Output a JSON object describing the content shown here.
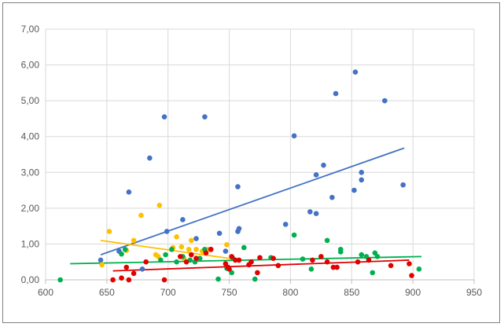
{
  "chart_data": {
    "type": "scatter",
    "title": "",
    "xlabel": "",
    "ylabel": "",
    "xlim": [
      600,
      950
    ],
    "ylim": [
      0,
      7
    ],
    "xticks": [
      "600",
      "650",
      "700",
      "750",
      "800",
      "850",
      "900",
      "950"
    ],
    "yticks": [
      "0,00",
      "1,00",
      "2,00",
      "3,00",
      "4,00",
      "5,00",
      "6,00",
      "7,00"
    ],
    "grid": true,
    "legend": "none",
    "series": [
      {
        "color": "#4472c4",
        "points": [
          [
            645,
            0.55
          ],
          [
            660,
            0.8
          ],
          [
            668,
            2.45
          ],
          [
            679,
            0.3
          ],
          [
            685,
            3.4
          ],
          [
            697,
            4.55
          ],
          [
            699,
            1.35
          ],
          [
            712,
            1.68
          ],
          [
            723,
            1.15
          ],
          [
            730,
            4.55
          ],
          [
            735,
            0.85
          ],
          [
            742,
            1.3
          ],
          [
            747,
            0.8
          ],
          [
            757,
            2.6
          ],
          [
            757,
            1.35
          ],
          [
            758,
            1.43
          ],
          [
            796,
            1.55
          ],
          [
            803,
            4.02
          ],
          [
            816,
            1.9
          ],
          [
            821,
            2.93
          ],
          [
            821,
            1.85
          ],
          [
            827,
            3.2
          ],
          [
            834,
            2.3
          ],
          [
            837,
            5.2
          ],
          [
            852,
            2.5
          ],
          [
            853,
            5.8
          ],
          [
            858,
            2.79
          ],
          [
            858,
            3.0
          ],
          [
            877,
            5.0
          ],
          [
            892,
            2.65
          ]
        ],
        "trendline": [
          [
            645,
            0.7
          ],
          [
            893,
            3.68
          ]
        ]
      },
      {
        "color": "#ffc000",
        "points": [
          [
            646,
            0.42
          ],
          [
            652,
            1.35
          ],
          [
            666,
            0.82
          ],
          [
            672,
            1.1
          ],
          [
            678,
            1.8
          ],
          [
            690,
            0.7
          ],
          [
            692,
            0.65
          ],
          [
            693,
            2.08
          ],
          [
            704,
            0.9
          ],
          [
            707,
            1.2
          ],
          [
            711,
            0.92
          ],
          [
            713,
            0.6
          ],
          [
            717,
            0.85
          ],
          [
            719,
            1.1
          ],
          [
            723,
            0.85
          ],
          [
            728,
            0.8
          ],
          [
            733,
            0.85
          ],
          [
            748,
            0.98
          ]
        ],
        "trendline": [
          [
            645,
            1.1
          ],
          [
            756,
            0.57
          ]
        ]
      },
      {
        "color": "#00b050",
        "points": [
          [
            612,
            0.0
          ],
          [
            662,
            0.72
          ],
          [
            665,
            0.85
          ],
          [
            694,
            0.55
          ],
          [
            698,
            0.7
          ],
          [
            703,
            0.85
          ],
          [
            707,
            0.5
          ],
          [
            712,
            0.65
          ],
          [
            718,
            0.55
          ],
          [
            722,
            0.5
          ],
          [
            726,
            0.6
          ],
          [
            730,
            0.85
          ],
          [
            741,
            0.02
          ],
          [
            748,
            0.32
          ],
          [
            752,
            0.2
          ],
          [
            753,
            0.6
          ],
          [
            762,
            0.9
          ],
          [
            771,
            0.02
          ],
          [
            784,
            0.62
          ],
          [
            803,
            1.25
          ],
          [
            810,
            0.58
          ],
          [
            817,
            0.3
          ],
          [
            830,
            1.1
          ],
          [
            841,
            0.85
          ],
          [
            841,
            0.78
          ],
          [
            858,
            0.7
          ],
          [
            862,
            0.65
          ],
          [
            867,
            0.2
          ],
          [
            869,
            0.75
          ],
          [
            871,
            0.65
          ],
          [
            905,
            0.3
          ]
        ],
        "trendline": [
          [
            620,
            0.45
          ],
          [
            907,
            0.65
          ]
        ]
      },
      {
        "color": "#e00000",
        "points": [
          [
            655,
            0.0
          ],
          [
            662,
            0.05
          ],
          [
            666,
            0.35
          ],
          [
            668,
            0.0
          ],
          [
            672,
            0.18
          ],
          [
            682,
            0.5
          ],
          [
            697,
            0.0
          ],
          [
            710,
            0.65
          ],
          [
            715,
            0.5
          ],
          [
            719,
            0.7
          ],
          [
            723,
            0.6
          ],
          [
            731,
            0.75
          ],
          [
            735,
            0.85
          ],
          [
            747,
            0.45
          ],
          [
            749,
            0.35
          ],
          [
            750,
            0.3
          ],
          [
            752,
            0.65
          ],
          [
            755,
            0.55
          ],
          [
            758,
            0.55
          ],
          [
            766,
            0.42
          ],
          [
            768,
            0.5
          ],
          [
            773,
            0.2
          ],
          [
            775,
            0.62
          ],
          [
            786,
            0.6
          ],
          [
            790,
            0.4
          ],
          [
            818,
            0.55
          ],
          [
            825,
            0.65
          ],
          [
            830,
            0.5
          ],
          [
            835,
            0.35
          ],
          [
            838,
            0.35
          ],
          [
            855,
            0.5
          ],
          [
            864,
            0.55
          ],
          [
            882,
            0.4
          ],
          [
            897,
            0.45
          ],
          [
            899,
            0.12
          ]
        ],
        "trendline": [
          [
            655,
            0.25
          ],
          [
            897,
            0.55
          ]
        ]
      }
    ]
  }
}
